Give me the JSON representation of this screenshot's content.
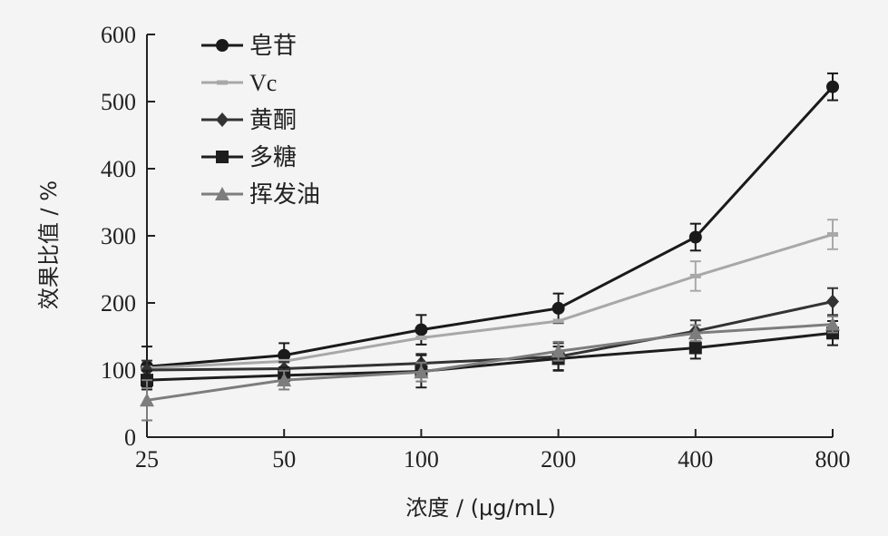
{
  "chart_data": {
    "type": "line",
    "title": "",
    "xlabel": "浓度 / (μg/mL)",
    "ylabel": "效果比值 / %",
    "categories": [
      "25",
      "50",
      "100",
      "200",
      "400",
      "800"
    ],
    "ylim": [
      0,
      600
    ],
    "yticks": [
      "0",
      "100",
      "200",
      "300",
      "400",
      "500",
      "600"
    ],
    "grid": false,
    "legend_position": "top-left",
    "series": [
      {
        "name": "皂苷",
        "marker": "circle",
        "color": "#1a1a1a",
        "values": [
          105,
          122,
          160,
          192,
          298,
          522
        ],
        "errors": [
          30,
          18,
          22,
          22,
          20,
          20
        ]
      },
      {
        "name": "Vc",
        "marker": "dash",
        "color": "#a8a8a8",
        "values": [
          103,
          113,
          148,
          173,
          240,
          302
        ],
        "errors": [
          0,
          0,
          0,
          0,
          22,
          22
        ]
      },
      {
        "name": "黄酮",
        "marker": "diamond",
        "color": "#333333",
        "values": [
          100,
          102,
          110,
          120,
          158,
          202
        ],
        "errors": [
          14,
          10,
          14,
          20,
          16,
          20
        ]
      },
      {
        "name": "多糖",
        "marker": "square",
        "color": "#1e1e1e",
        "values": [
          85,
          92,
          98,
          117,
          133,
          155
        ],
        "errors": [
          14,
          12,
          24,
          18,
          16,
          18
        ]
      },
      {
        "name": "挥发油",
        "marker": "triangle",
        "color": "#7d7d7d",
        "values": [
          55,
          85,
          97,
          128,
          155,
          168
        ],
        "errors": [
          30,
          14,
          14,
          14,
          12,
          12
        ]
      }
    ]
  }
}
